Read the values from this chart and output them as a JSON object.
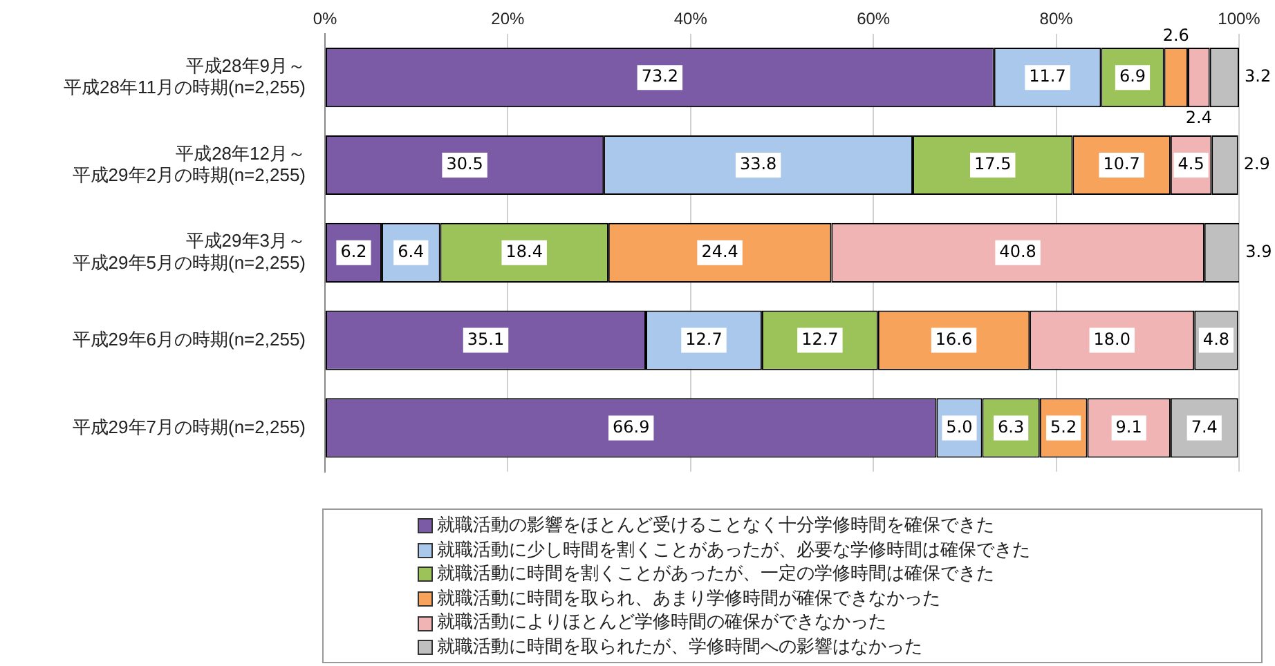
{
  "chart_data": {
    "type": "bar",
    "orientation": "horizontal",
    "stacked": true,
    "grid": "x",
    "legend": "bottom",
    "categories": [
      "平成28年9月～平成28年11月の時期(n=2,255)",
      "平成28年12月～平成29年2月の時期(n=2,255)",
      "平成29年3月～平成29年5月の時期(n=2,255)",
      "平成29年6月の時期(n=2,255)",
      "平成29年7月の時期(n=2,255)"
    ],
    "xlim": [
      0,
      100
    ],
    "xticks": [
      {
        "value": 0,
        "label": "0%"
      },
      {
        "value": 20,
        "label": "20%"
      },
      {
        "value": 40,
        "label": "40%"
      },
      {
        "value": 60,
        "label": "60%"
      },
      {
        "value": 80,
        "label": "80%"
      },
      {
        "value": 100,
        "label": "100%"
      }
    ],
    "series": [
      {
        "name": "就職活動の影響をほとんど受けることなく十分学修時間を確保できた",
        "color": "#7b5ba6",
        "values": [
          73.2,
          30.5,
          6.2,
          35.1,
          66.9
        ],
        "value_labels": [
          "73.2",
          "30.5",
          "6.2",
          "35.1",
          "66.9"
        ]
      },
      {
        "name": "就職活動に少し時間を割くことがあったが、必要な学修時間は確保できた",
        "color": "#a9c8ec",
        "values": [
          11.7,
          33.8,
          6.4,
          12.7,
          5.0
        ],
        "value_labels": [
          "11.7",
          "33.8",
          "6.4",
          "12.7",
          "5.0"
        ]
      },
      {
        "name": "就職活動に時間を割くことがあったが、一定の学修時間は確保できた",
        "color": "#9bc35a",
        "values": [
          6.9,
          17.5,
          18.4,
          12.7,
          6.3
        ],
        "value_labels": [
          "6.9",
          "17.5",
          "18.4",
          "12.7",
          "6.3"
        ]
      },
      {
        "name": "就職活動に時間を取られ、あまり学修時間が確保できなかった",
        "color": "#f7a35c",
        "values": [
          2.6,
          10.7,
          24.4,
          16.6,
          5.2
        ],
        "value_labels": [
          "2.6",
          "10.7",
          "24.4",
          "16.6",
          "5.2"
        ]
      },
      {
        "name": "就職活動によりほとんど学修時間の確保ができなかった",
        "color": "#f0b4b4",
        "values": [
          2.4,
          4.5,
          40.8,
          18.0,
          9.1
        ],
        "value_labels": [
          "2.4",
          "4.5",
          "40.8",
          "18.0",
          "9.1"
        ]
      },
      {
        "name": "就職活動に時間を取られたが、学修時間への影響はなかった",
        "color": "#bfbfbf",
        "values": [
          3.2,
          2.9,
          3.9,
          4.8,
          7.4
        ],
        "value_labels": [
          "3.2",
          "2.9",
          "3.9",
          "4.8",
          "7.4"
        ]
      }
    ]
  }
}
